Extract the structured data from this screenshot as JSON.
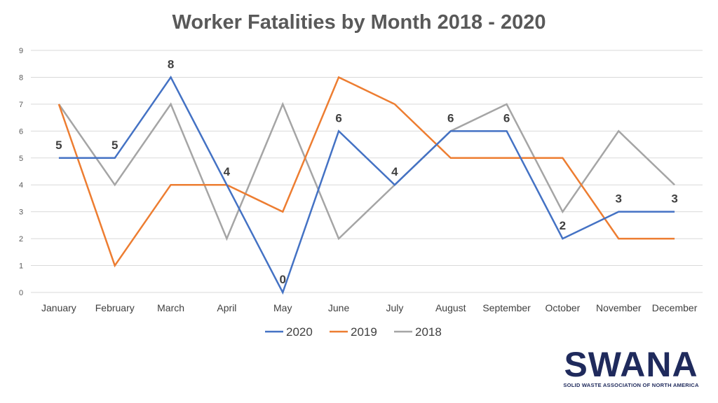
{
  "chart_data": {
    "type": "line",
    "title": "Worker Fatalities by Month 2018 - 2020",
    "categories": [
      "January",
      "February",
      "March",
      "April",
      "May",
      "June",
      "July",
      "August",
      "September",
      "October",
      "November",
      "December"
    ],
    "ylim": [
      0,
      9
    ],
    "yticks": [
      0,
      1,
      2,
      3,
      4,
      5,
      6,
      7,
      8,
      9
    ],
    "grid": true,
    "legend_position": "bottom",
    "series": [
      {
        "name": "2020",
        "color": "#4472c4",
        "values": [
          5,
          5,
          8,
          4,
          0,
          6,
          4,
          6,
          6,
          2,
          3,
          3
        ],
        "data_labels": true
      },
      {
        "name": "2019",
        "color": "#ed7d31",
        "values": [
          7,
          1,
          4,
          4,
          3,
          8,
          7,
          5,
          5,
          5,
          2,
          2
        ],
        "data_labels": false
      },
      {
        "name": "2018",
        "color": "#a5a5a5",
        "values": [
          7,
          4,
          7,
          2,
          7,
          2,
          4,
          6,
          7,
          3,
          6,
          4
        ],
        "data_labels": false
      }
    ]
  },
  "logo": {
    "word": "SWANA",
    "subtitle": "SOLID WASTE ASSOCIATION OF NORTH AMERICA",
    "color": "#1f2a5c",
    "accent_color": "#8dc63f"
  }
}
